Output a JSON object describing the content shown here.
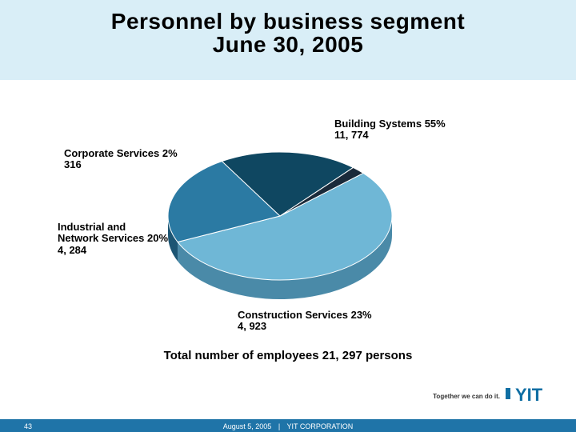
{
  "title_line1": "Personnel by business segment",
  "title_line2": "June 30, 2005",
  "chart": {
    "type": "pie-3d",
    "slices": [
      {
        "name": "Building Systems",
        "percent": 55,
        "count": "11, 774",
        "color_top": "#6fb7d6",
        "color_side": "#4a8aa8"
      },
      {
        "name": "Construction Services",
        "percent": 23,
        "count": "4, 923",
        "color_top": "#2b7aa3",
        "color_side": "#1c5573"
      },
      {
        "name": "Industrial and Network Services",
        "percent": 20,
        "count": "4, 284",
        "color_top": "#0f4761",
        "color_side": "#0a3142"
      },
      {
        "name": "Corporate Services",
        "percent": 2,
        "count": "316",
        "color_top": "#1a2a3a",
        "color_side": "#0c161f"
      }
    ],
    "background": "#ffffff",
    "ellipse_rx": 140,
    "ellipse_ry": 80,
    "depth": 24,
    "start_angle_deg": -42
  },
  "labels": {
    "building_systems": {
      "line1": "Building Systems 55%",
      "line2": "11, 774"
    },
    "corporate_services": {
      "line1": "Corporate Services 2%",
      "line2": "316"
    },
    "industrial_network": {
      "line1": "Industrial and",
      "line2": "Network Services 20%",
      "line3": "4, 284"
    },
    "construction_services": {
      "line1": "Construction Services  23%",
      "line2": "4, 923"
    }
  },
  "total_text": "Total number of employees 21, 297 persons",
  "tagline": "Together we can do it.",
  "logo_text": "YIT",
  "logo_color": "#0f6ea3",
  "footer": {
    "page": "43",
    "date": "August 5, 2005",
    "company": "YIT CORPORATION"
  },
  "header_band_color": "#d9eef7",
  "footer_bar_color": "#1f74a8"
}
